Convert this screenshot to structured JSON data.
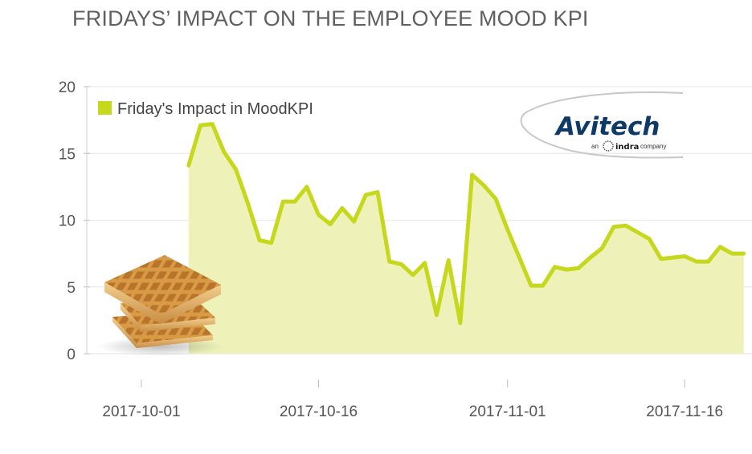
{
  "chart_data": {
    "type": "area",
    "title": "FRIDAYS’ IMPACT ON THE EMPLOYEE MOOD KPI",
    "xlabel": "",
    "ylabel": "",
    "ylim": [
      0,
      20
    ],
    "yticks": [
      0,
      5,
      10,
      15,
      20
    ],
    "xticks": [
      "2017-10-01",
      "2017-10-16",
      "2017-11-01",
      "2017-11-16"
    ],
    "grid": false,
    "legend": "top-left",
    "series": [
      {
        "name": "Friday's Impact in MoodKPI",
        "color": "#c5d81b",
        "fill": "#eef2b9",
        "x": [
          "2017-10-05",
          "2017-10-06",
          "2017-10-07",
          "2017-10-08",
          "2017-10-09",
          "2017-10-10",
          "2017-10-11",
          "2017-10-12",
          "2017-10-13",
          "2017-10-14",
          "2017-10-15",
          "2017-10-16",
          "2017-10-17",
          "2017-10-18",
          "2017-10-19",
          "2017-10-20",
          "2017-10-21",
          "2017-10-22",
          "2017-10-23",
          "2017-10-24",
          "2017-10-25",
          "2017-10-26",
          "2017-10-27",
          "2017-10-28",
          "2017-10-29",
          "2017-10-30",
          "2017-10-31",
          "2017-11-01",
          "2017-11-02",
          "2017-11-03",
          "2017-11-04",
          "2017-11-05",
          "2017-11-06",
          "2017-11-07",
          "2017-11-08",
          "2017-11-09",
          "2017-11-10",
          "2017-11-11",
          "2017-11-12",
          "2017-11-13",
          "2017-11-14",
          "2017-11-15",
          "2017-11-16",
          "2017-11-17",
          "2017-11-18",
          "2017-11-19",
          "2017-11-20",
          "2017-11-21"
        ],
        "values": [
          14.1,
          17.1,
          17.2,
          15.1,
          13.8,
          11.3,
          8.5,
          8.3,
          11.4,
          11.4,
          12.5,
          10.4,
          9.7,
          10.9,
          9.9,
          11.9,
          12.1,
          6.9,
          6.7,
          5.9,
          6.8,
          2.9,
          7.0,
          2.3,
          13.4,
          12.6,
          11.6,
          9.3,
          7.2,
          5.1,
          5.1,
          6.5,
          6.3,
          6.4,
          7.2,
          7.9,
          9.5,
          9.6,
          9.1,
          8.6,
          7.1,
          7.2,
          7.3,
          6.9,
          6.9,
          8.0,
          7.5,
          7.5
        ]
      }
    ]
  },
  "logo": {
    "wordmark": "Avitech",
    "sub_prefix": "an",
    "sub_brand": "indra",
    "sub_suffix": "company"
  },
  "decoration": {
    "image": "waffles-stack"
  }
}
